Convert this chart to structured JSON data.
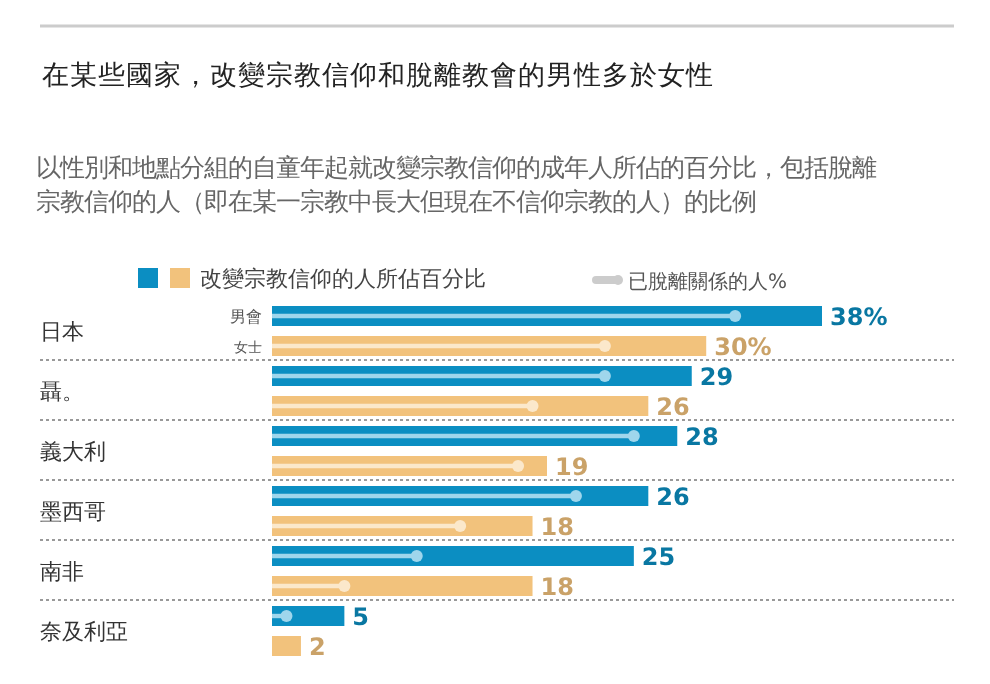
{
  "chart_data": {
    "type": "bar",
    "orientation": "horizontal",
    "title": "在某些國家，改變宗教信仰和脫離教會的男性多於女性",
    "subtitle": "以性別和地點分組的自童年起就改變宗教信仰的成年人所佔的百分比，包括脫離宗教信仰的人（即在某一宗教中長大但現在不信仰宗教的人）的比例",
    "legend_title": "改變宗教信仰的人所佔百分比",
    "legend": "top",
    "categories": [
      "日本",
      "聶。",
      "義大利",
      "墨西哥",
      "南非",
      "奈及利亞"
    ],
    "series": [
      {
        "name": "男會",
        "color": "#0b8ec2",
        "values": [
          38,
          29,
          28,
          26,
          25,
          5
        ],
        "value_labels": [
          "38%",
          "29",
          "28",
          "26",
          "25",
          "5"
        ]
      },
      {
        "name": "女士",
        "color": "#f2c27c",
        "values": [
          30,
          26,
          19,
          18,
          18,
          2
        ],
        "value_labels": [
          "30%",
          "26",
          "19",
          "18",
          "18",
          "2"
        ]
      },
      {
        "name": "已脫離關係的人%",
        "type": "lollipop",
        "color": "#9fd6ec",
        "values": [
          32,
          23,
          25,
          21,
          10,
          1
        ]
      },
      {
        "type": "lollipop",
        "color": "#fbe8cb",
        "values": [
          23,
          18,
          17,
          13,
          5,
          null
        ]
      }
    ]
  }
}
